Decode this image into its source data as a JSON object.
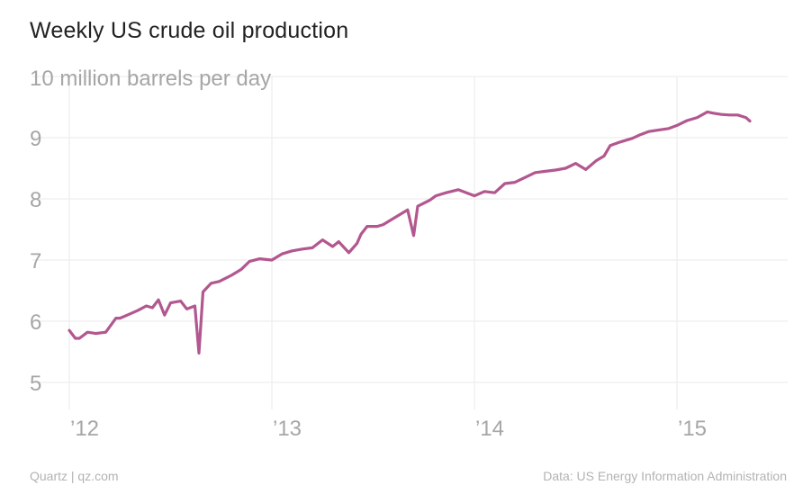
{
  "header": {
    "title": "Weekly US crude oil production"
  },
  "footer": {
    "credit": "Quartz | qz.com",
    "source": "Data: US Energy Information Administration"
  },
  "colors": {
    "line": "#b2578f",
    "grid": "#eeeeee",
    "axis_text": "#a6a6a6"
  },
  "chart_data": {
    "type": "line",
    "title": "Weekly US crude oil production",
    "ylabel": "",
    "xlabel": "",
    "unit_label": "10 million barrels per day",
    "ylim": [
      4.7,
      10.1
    ],
    "xlim": [
      2011.96,
      2015.55
    ],
    "yticks": [
      5,
      6,
      7,
      8,
      9,
      10
    ],
    "ytick_labels": [
      "5",
      "6",
      "7",
      "8",
      "9",
      ""
    ],
    "xticks": [
      2012.0,
      2013.0,
      2014.0,
      2015.0
    ],
    "xtick_labels": [
      "’12",
      "’13",
      "’14",
      "’15"
    ],
    "grid": true,
    "series": [
      {
        "x": [
          2012.0,
          2012.03,
          2012.05,
          2012.09,
          2012.13,
          2012.18,
          2012.23,
          2012.25,
          2012.3,
          2012.34,
          2012.38,
          2012.41,
          2012.44,
          2012.47,
          2012.5,
          2012.55,
          2012.58,
          2012.62,
          2012.64,
          2012.66,
          2012.7,
          2012.74,
          2012.8,
          2012.85,
          2012.89,
          2012.94,
          2013.0,
          2013.05,
          2013.1,
          2013.15,
          2013.2,
          2013.25,
          2013.3,
          2013.33,
          2013.38,
          2013.42,
          2013.44,
          2013.47,
          2013.52,
          2013.55,
          2013.6,
          2013.67,
          2013.7,
          2013.72,
          2013.75,
          2013.78,
          2013.81,
          2013.86,
          2013.92,
          2014.0,
          2014.05,
          2014.1,
          2014.15,
          2014.2,
          2014.25,
          2014.3,
          2014.35,
          2014.4,
          2014.45,
          2014.5,
          2014.55,
          2014.6,
          2014.64,
          2014.67,
          2014.72,
          2014.78,
          2014.82,
          2014.86,
          2014.9,
          2014.96,
          2015.0,
          2015.05,
          2015.1,
          2015.15,
          2015.18,
          2015.22,
          2015.26,
          2015.3,
          2015.34,
          2015.36
        ],
        "y": [
          5.85,
          5.72,
          5.72,
          5.82,
          5.8,
          5.82,
          6.05,
          6.05,
          6.12,
          6.18,
          6.25,
          6.22,
          6.35,
          6.1,
          6.3,
          6.33,
          6.2,
          6.25,
          5.48,
          6.48,
          6.62,
          6.65,
          6.75,
          6.85,
          6.98,
          7.02,
          7.0,
          7.1,
          7.15,
          7.18,
          7.2,
          7.33,
          7.22,
          7.3,
          7.12,
          7.27,
          7.42,
          7.55,
          7.55,
          7.58,
          7.68,
          7.82,
          7.4,
          7.88,
          7.93,
          7.98,
          8.05,
          8.1,
          8.15,
          8.05,
          8.12,
          8.1,
          8.25,
          8.27,
          8.35,
          8.43,
          8.45,
          8.47,
          8.5,
          8.58,
          8.48,
          8.62,
          8.7,
          8.87,
          8.93,
          8.99,
          9.05,
          9.1,
          9.12,
          9.15,
          9.2,
          9.28,
          9.33,
          9.42,
          9.4,
          9.38,
          9.37,
          9.37,
          9.33,
          9.27
        ]
      }
    ]
  }
}
